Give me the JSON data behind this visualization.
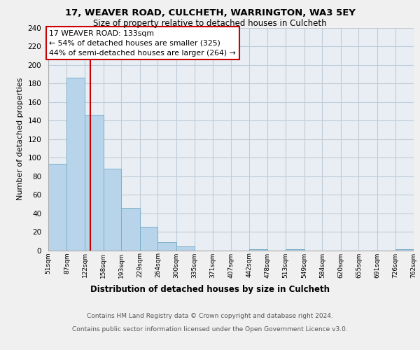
{
  "title1": "17, WEAVER ROAD, CULCHETH, WARRINGTON, WA3 5EY",
  "title2": "Size of property relative to detached houses in Culcheth",
  "xlabel": "Distribution of detached houses by size in Culcheth",
  "ylabel": "Number of detached properties",
  "bin_edges": [
    51,
    87,
    122,
    158,
    193,
    229,
    264,
    300,
    335,
    371,
    407,
    442,
    478,
    513,
    549,
    584,
    620,
    655,
    691,
    726,
    762
  ],
  "bin_labels": [
    "51sqm",
    "87sqm",
    "122sqm",
    "158sqm",
    "193sqm",
    "229sqm",
    "264sqm",
    "300sqm",
    "335sqm",
    "371sqm",
    "407sqm",
    "442sqm",
    "478sqm",
    "513sqm",
    "549sqm",
    "584sqm",
    "620sqm",
    "655sqm",
    "691sqm",
    "726sqm",
    "762sqm"
  ],
  "counts": [
    93,
    186,
    146,
    88,
    46,
    25,
    9,
    4,
    0,
    0,
    0,
    1,
    0,
    1,
    0,
    0,
    0,
    0,
    0,
    1
  ],
  "bar_color": "#b8d4ea",
  "bar_edge_color": "#7aafc8",
  "vline_x": 133,
  "vline_color": "#cc0000",
  "annotation_title": "17 WEAVER ROAD: 133sqm",
  "annotation_line1": "← 54% of detached houses are smaller (325)",
  "annotation_line2": "44% of semi-detached houses are larger (264) →",
  "annotation_box_color": "white",
  "annotation_box_edge": "#cc0000",
  "ylim": [
    0,
    240
  ],
  "yticks": [
    0,
    20,
    40,
    60,
    80,
    100,
    120,
    140,
    160,
    180,
    200,
    220,
    240
  ],
  "footer1": "Contains HM Land Registry data © Crown copyright and database right 2024.",
  "footer2": "Contains public sector information licensed under the Open Government Licence v3.0.",
  "bg_color": "#f0f0f0",
  "plot_bg_color": "#e8eef4",
  "grid_color": "#c0ccd8"
}
